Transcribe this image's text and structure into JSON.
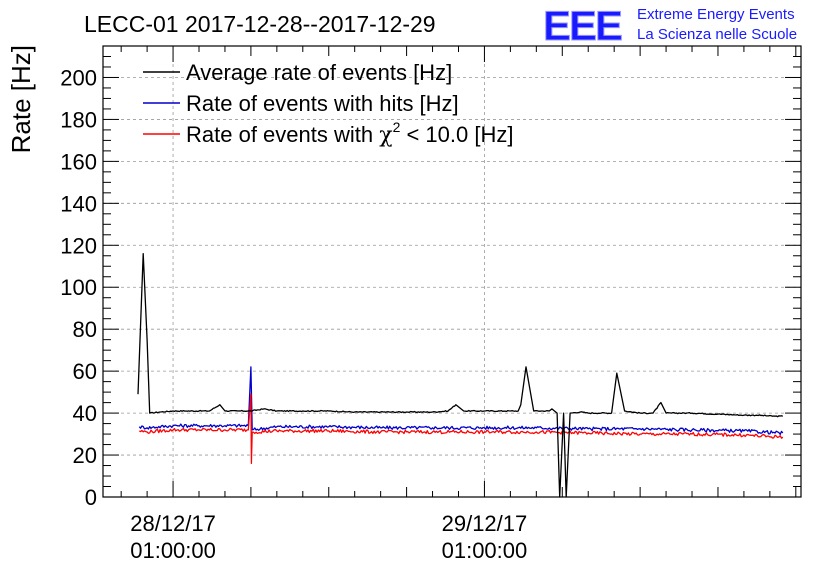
{
  "header": {
    "title": "LECC-01 2017-12-28--2017-12-29",
    "logo_text": "EEE",
    "org_line1": "Extreme Energy Events",
    "org_line2": "La Scienza nelle Scuole"
  },
  "chart_data": {
    "type": "line",
    "title": "LECC-01 2017-12-28--2017-12-29",
    "ylabel": "Rate [Hz]",
    "xlabel": "",
    "ylim": [
      0,
      215
    ],
    "xlim": [
      -2.7,
      24.2
    ],
    "yticks": [
      0,
      20,
      40,
      60,
      80,
      100,
      120,
      140,
      160,
      180,
      200
    ],
    "xticks": [
      {
        "x": 0,
        "line1": "28/12/17",
        "line2": "01:00:00"
      },
      {
        "x": 12,
        "line1": "29/12/17",
        "line2": "01:00:00"
      }
    ],
    "x_unit": "hours since 28/12/17 01:00:00",
    "grid": true,
    "legend_position": "top-left",
    "colors": {
      "average": "#000000",
      "hits": "#0000cc",
      "chi2": "#ff0000"
    },
    "legend": {
      "average": "Average rate of events [Hz]",
      "hits": "Rate of events with hits [Hz]",
      "chi2_prefix": "Rate of events with ",
      "chi2_symbol": "χ",
      "chi2_exp": "2",
      "chi2_suffix": " < 10.0 [Hz]"
    },
    "series": [
      {
        "name": "Average rate of events [Hz]",
        "color": "#000000",
        "points": [
          [
            -1.35,
            49
          ],
          [
            -1.15,
            116
          ],
          [
            -1.0,
            75
          ],
          [
            -0.9,
            40
          ],
          [
            -0.5,
            40.5
          ],
          [
            0,
            41
          ],
          [
            0.5,
            41
          ],
          [
            1.0,
            41
          ],
          [
            1.4,
            41
          ],
          [
            1.8,
            44
          ],
          [
            2.0,
            41
          ],
          [
            2.5,
            41
          ],
          [
            3.0,
            41
          ],
          [
            3.5,
            42
          ],
          [
            4,
            41
          ],
          [
            5,
            41
          ],
          [
            6,
            41
          ],
          [
            7,
            40.5
          ],
          [
            8,
            40.5
          ],
          [
            9,
            40.5
          ],
          [
            10,
            40.5
          ],
          [
            10.6,
            41
          ],
          [
            10.9,
            44
          ],
          [
            11.2,
            41
          ],
          [
            12,
            41
          ],
          [
            13,
            41
          ],
          [
            13.3,
            41
          ],
          [
            13.4,
            44
          ],
          [
            13.6,
            62
          ],
          [
            13.9,
            41
          ],
          [
            14.5,
            41
          ],
          [
            14.6,
            42
          ],
          [
            14.8,
            40
          ],
          [
            14.9,
            0
          ],
          [
            15.05,
            40
          ],
          [
            15.15,
            0
          ],
          [
            15.3,
            40
          ],
          [
            15.7,
            40.5
          ],
          [
            16,
            40
          ],
          [
            16.5,
            40
          ],
          [
            16.9,
            40
          ],
          [
            17.1,
            59
          ],
          [
            17.4,
            41
          ],
          [
            18.0,
            40
          ],
          [
            18.5,
            40
          ],
          [
            18.8,
            45
          ],
          [
            19.0,
            40
          ],
          [
            20,
            40
          ],
          [
            21,
            39.5
          ],
          [
            22,
            39
          ],
          [
            22.5,
            39
          ],
          [
            23.2,
            38.5
          ],
          [
            23.5,
            38.5
          ]
        ]
      },
      {
        "name": "Rate of events with hits [Hz]",
        "color": "#0000cc",
        "points": [
          [
            -1.3,
            33.5
          ],
          [
            -1,
            33
          ],
          [
            0,
            34
          ],
          [
            1,
            34
          ],
          [
            2,
            34
          ],
          [
            2.9,
            34
          ],
          [
            3,
            62
          ],
          [
            3.05,
            32
          ],
          [
            4,
            33.5
          ],
          [
            6,
            33.5
          ],
          [
            8,
            33
          ],
          [
            10,
            33
          ],
          [
            12,
            33
          ],
          [
            14,
            33
          ],
          [
            16,
            32.5
          ],
          [
            18,
            32.5
          ],
          [
            20,
            32
          ],
          [
            22,
            31.5
          ],
          [
            23.5,
            30.5
          ]
        ]
      },
      {
        "name": "Rate of events with χ2 < 10.0 [Hz]",
        "color": "#ff0000",
        "points": [
          [
            -1.3,
            31.5
          ],
          [
            -1,
            31
          ],
          [
            0,
            32
          ],
          [
            1,
            32
          ],
          [
            2,
            32
          ],
          [
            2.9,
            32
          ],
          [
            3,
            49
          ],
          [
            3.02,
            16
          ],
          [
            3.05,
            31
          ],
          [
            4,
            31.5
          ],
          [
            6,
            31.5
          ],
          [
            8,
            31
          ],
          [
            10,
            31
          ],
          [
            12,
            31
          ],
          [
            14,
            31
          ],
          [
            16,
            30.5
          ],
          [
            18,
            30
          ],
          [
            20,
            30
          ],
          [
            22,
            29.5
          ],
          [
            23.5,
            28.5
          ]
        ]
      }
    ]
  }
}
